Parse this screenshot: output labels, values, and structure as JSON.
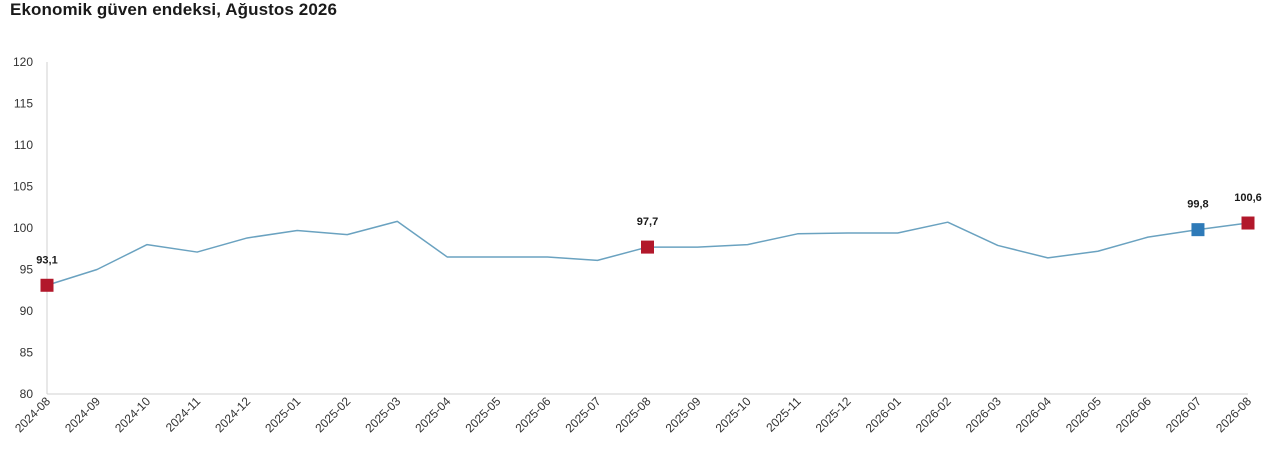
{
  "page": {
    "title": "Ekonomik güven endeksi, Ağustos 2026"
  },
  "chart_data": {
    "type": "line",
    "title": "Ekonomik güven endeksi, Ağustos 2026",
    "xlabel": "",
    "ylabel": "",
    "ylim": [
      80,
      120
    ],
    "yticks": [
      80,
      85,
      90,
      95,
      100,
      105,
      110,
      115,
      120
    ],
    "grid": false,
    "x": [
      "2024-08",
      "2024-09",
      "2024-10",
      "2024-11",
      "2024-12",
      "2025-01",
      "2025-02",
      "2025-03",
      "2025-04",
      "2025-05",
      "2025-06",
      "2025-07",
      "2025-08",
      "2025-09",
      "2025-10",
      "2025-11",
      "2025-12",
      "2026-01",
      "2026-02",
      "2026-03",
      "2026-04",
      "2026-05",
      "2026-06",
      "2026-07",
      "2026-08"
    ],
    "series": [
      {
        "values": [
          93.1,
          95.0,
          98.0,
          97.1,
          98.8,
          99.7,
          99.2,
          100.8,
          96.5,
          96.5,
          96.5,
          96.1,
          97.7,
          97.7,
          98.0,
          99.3,
          99.4,
          99.4,
          100.7,
          97.9,
          96.4,
          97.2,
          98.9,
          99.8,
          100.6
        ],
        "color": "#6aa2c0"
      }
    ],
    "markers": [
      {
        "index": 0,
        "label": "93,1",
        "color": "#b2182b"
      },
      {
        "index": 12,
        "label": "97,7",
        "color": "#b2182b"
      },
      {
        "index": 23,
        "label": "99,8",
        "color": "#2e7ab8"
      },
      {
        "index": 24,
        "label": "100,6",
        "color": "#b2182b"
      }
    ]
  }
}
